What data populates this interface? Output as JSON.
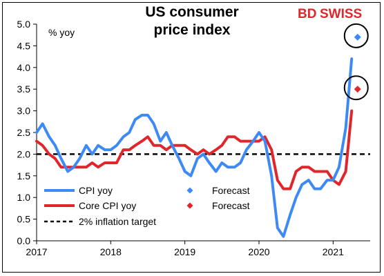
{
  "brand": {
    "bd": "BD",
    "swiss": "SWISS",
    "color": "#e0262b"
  },
  "chart_data": {
    "type": "line",
    "title": "US consumer price index",
    "title_lines": [
      "US consumer",
      "price index"
    ],
    "ylabel": "% yoy",
    "ylim": [
      0.0,
      5.0
    ],
    "yticks": [
      "0.0",
      "0.5",
      "1.0",
      "1.5",
      "2.0",
      "2.5",
      "3.0",
      "3.5",
      "4.0",
      "4.5",
      "5.0"
    ],
    "xlim": [
      2017.0,
      2021.5
    ],
    "xticks": [
      "2017",
      "2018",
      "2019",
      "2020",
      "2021"
    ],
    "grid": false,
    "legend_position": "bottom-left",
    "reference_line": {
      "name": "2% inflation target",
      "y": 2.0,
      "style": "dashed",
      "color": "#000000"
    },
    "series": [
      {
        "name": "CPI yoy",
        "color": "#3d8af7",
        "x": [
          2017.0,
          2017.08,
          2017.17,
          2017.25,
          2017.33,
          2017.42,
          2017.5,
          2017.58,
          2017.67,
          2017.75,
          2017.83,
          2017.92,
          2018.0,
          2018.08,
          2018.17,
          2018.25,
          2018.33,
          2018.42,
          2018.5,
          2018.58,
          2018.67,
          2018.75,
          2018.83,
          2018.92,
          2019.0,
          2019.08,
          2019.17,
          2019.25,
          2019.33,
          2019.42,
          2019.5,
          2019.58,
          2019.67,
          2019.75,
          2019.83,
          2019.92,
          2020.0,
          2020.08,
          2020.17,
          2020.25,
          2020.33,
          2020.42,
          2020.5,
          2020.58,
          2020.67,
          2020.75,
          2020.83,
          2020.92,
          2021.0,
          2021.08,
          2021.17,
          2021.25
        ],
        "values": [
          2.5,
          2.7,
          2.4,
          2.2,
          1.9,
          1.6,
          1.7,
          1.9,
          2.2,
          2.0,
          2.2,
          2.1,
          2.1,
          2.2,
          2.4,
          2.5,
          2.8,
          2.9,
          2.9,
          2.7,
          2.3,
          2.5,
          2.2,
          1.9,
          1.6,
          1.5,
          1.9,
          2.0,
          1.8,
          1.6,
          1.8,
          1.7,
          1.7,
          1.8,
          2.1,
          2.3,
          2.5,
          2.3,
          1.5,
          0.3,
          0.1,
          0.6,
          1.0,
          1.3,
          1.4,
          1.2,
          1.2,
          1.4,
          1.4,
          1.7,
          2.6,
          4.2
        ]
      },
      {
        "name": "Core CPI yoy",
        "color": "#e0262b",
        "x": [
          2017.0,
          2017.08,
          2017.17,
          2017.25,
          2017.33,
          2017.42,
          2017.5,
          2017.58,
          2017.67,
          2017.75,
          2017.83,
          2017.92,
          2018.0,
          2018.08,
          2018.17,
          2018.25,
          2018.33,
          2018.42,
          2018.5,
          2018.58,
          2018.67,
          2018.75,
          2018.83,
          2018.92,
          2019.0,
          2019.08,
          2019.17,
          2019.25,
          2019.33,
          2019.42,
          2019.5,
          2019.58,
          2019.67,
          2019.75,
          2019.83,
          2019.92,
          2020.0,
          2020.08,
          2020.17,
          2020.25,
          2020.33,
          2020.42,
          2020.5,
          2020.58,
          2020.67,
          2020.75,
          2020.83,
          2020.92,
          2021.0,
          2021.08,
          2021.17,
          2021.25
        ],
        "values": [
          2.3,
          2.2,
          2.0,
          1.9,
          1.7,
          1.7,
          1.7,
          1.7,
          1.7,
          1.8,
          1.7,
          1.8,
          1.8,
          1.8,
          2.1,
          2.1,
          2.2,
          2.3,
          2.4,
          2.2,
          2.2,
          2.1,
          2.2,
          2.2,
          2.2,
          2.1,
          2.0,
          2.1,
          2.0,
          2.1,
          2.2,
          2.4,
          2.4,
          2.3,
          2.3,
          2.3,
          2.3,
          2.4,
          2.1,
          1.4,
          1.2,
          1.2,
          1.6,
          1.7,
          1.7,
          1.6,
          1.6,
          1.6,
          1.4,
          1.3,
          1.6,
          3.0
        ]
      }
    ],
    "forecasts": [
      {
        "name": "Forecast",
        "color": "#3d8af7",
        "x": 2021.33,
        "y": 4.7
      },
      {
        "name": "Forecast",
        "color": "#e0262b",
        "x": 2021.33,
        "y": 3.5
      }
    ]
  }
}
